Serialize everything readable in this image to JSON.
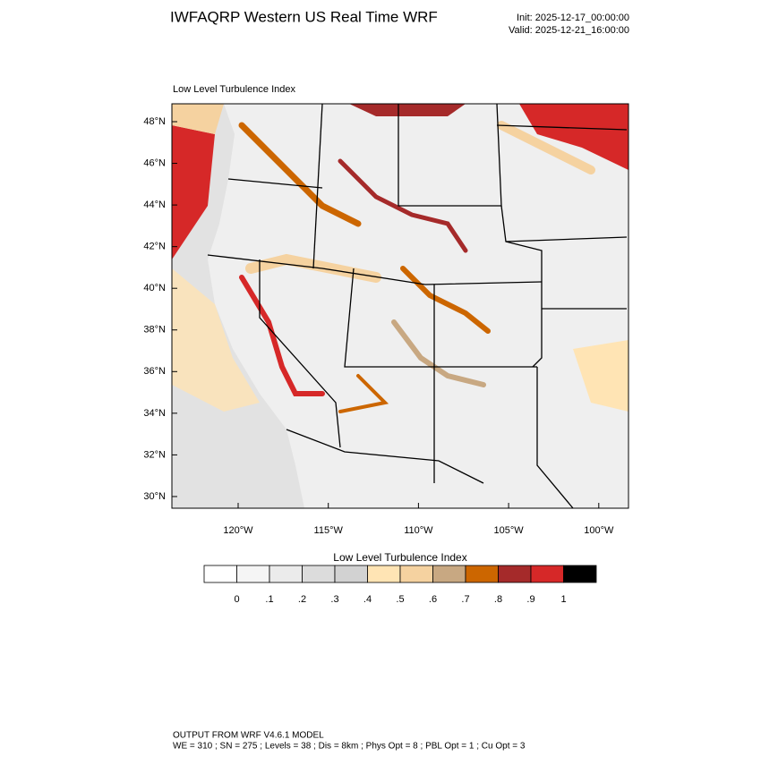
{
  "header": {
    "title": "IWFAQRP Western US Real Time WRF",
    "init": "Init: 2025-12-17_00:00:00",
    "valid": "Valid: 2025-12-21_16:00:00"
  },
  "map": {
    "subtitle": "Low Level Turbulence Index",
    "lat_labels": [
      "48°N",
      "46°N",
      "44°N",
      "42°N",
      "40°N",
      "38°N",
      "36°N",
      "34°N",
      "32°N",
      "30°N"
    ],
    "lon_labels": [
      "120°W",
      "115°W",
      "110°W",
      "105°W",
      "100°W"
    ]
  },
  "colorbar": {
    "title": "Low Level Turbulence Index",
    "labels": [
      "0",
      ".1",
      ".2",
      ".3",
      ".4",
      ".5",
      ".6",
      ".7",
      ".8",
      ".9",
      "1"
    ],
    "colors": [
      "#ffffff",
      "#f5f5f5",
      "#ebebeb",
      "#dcdcdc",
      "#d2d2d2",
      "#ffe4b4",
      "#f5d2a0",
      "#c8a882",
      "#cc6600",
      "#a52a2a",
      "#d62828",
      "#000000"
    ]
  },
  "footer": {
    "line1": "OUTPUT FROM WRF V4.6.1 MODEL",
    "line2": "WE = 310 ; SN = 275 ; Levels = 38 ; Dis = 8km ; Phys Opt = 8 ; PBL Opt = 1 ; Cu Opt = 3"
  }
}
